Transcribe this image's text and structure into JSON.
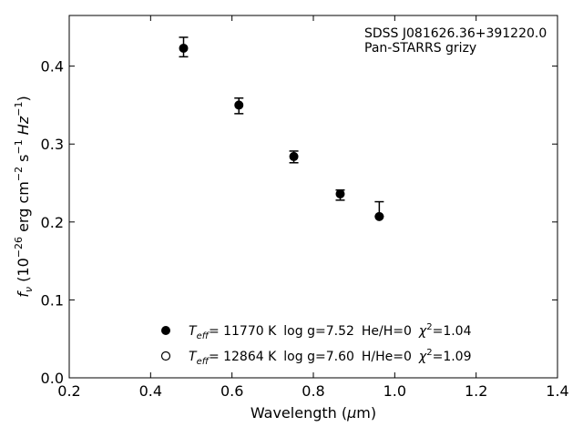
{
  "chart_data": {
    "type": "scatter",
    "title": "",
    "xlabel": {
      "pre": "Wavelength (",
      "mu": "μ",
      "post": "m)"
    },
    "ylabel": {
      "f": "f",
      "nu": "ν",
      "rest": " (10",
      "e1": "−26",
      "mid": " erg cm",
      "e2": "−2",
      "mid2": " s",
      "e3": "−1",
      "mid3": " Hz",
      "e4": "−1",
      "close": ")"
    },
    "xlim": [
      0.2,
      1.4
    ],
    "ylim": [
      0.0,
      0.465
    ],
    "xticks": [
      "0.2",
      "0.4",
      "0.6",
      "0.8",
      "1.0",
      "1.2",
      "1.4"
    ],
    "yticks": [
      "0.0",
      "0.1",
      "0.2",
      "0.3",
      "0.4"
    ],
    "grid": false,
    "annotations": [
      "SDSS J081626.36+391220.0",
      "Pan-STARRS grizy"
    ],
    "series": [
      {
        "marker": "filled-circle",
        "color": "#000000",
        "points": [
          {
            "x": 0.481,
            "y": 0.423,
            "yerr_low": 0.011,
            "yerr_high": 0.014
          },
          {
            "x": 0.617,
            "y": 0.35,
            "yerr_low": 0.011,
            "yerr_high": 0.009
          },
          {
            "x": 0.752,
            "y": 0.284,
            "yerr_low": 0.008,
            "yerr_high": 0.007
          },
          {
            "x": 0.866,
            "y": 0.236,
            "yerr_low": 0.008,
            "yerr_high": 0.005
          },
          {
            "x": 0.962,
            "y": 0.207,
            "yerr_low": 0.0,
            "yerr_high": 0.019
          }
        ]
      }
    ],
    "legend": {
      "position": "lower-center",
      "entries": [
        {
          "marker": "filled-circle",
          "T": "T",
          "Tsub": "eff",
          "teff": "= 11770 K",
          "logg": "log g=7.52",
          "comp": "He/H=0",
          "chi": "χ",
          "chisup": "2",
          "chival": "=1.04"
        },
        {
          "marker": "open-circle",
          "T": "T",
          "Tsub": "eff",
          "teff": "= 12864 K",
          "logg": "log g=7.60",
          "comp": "H/He=0",
          "chi": "χ",
          "chisup": "2",
          "chival": "=1.09"
        }
      ]
    }
  }
}
